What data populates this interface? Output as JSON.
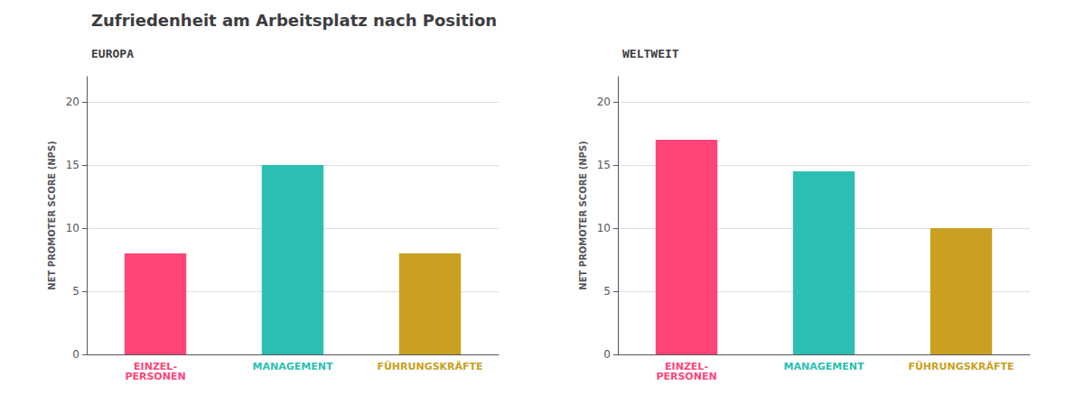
{
  "chart_data": [
    {
      "type": "bar",
      "title": "Zufriedenheit am Arbeitsplatz nach Position",
      "subtitle": "EUROPA",
      "categories": [
        "EINZEL-\nPERSONEN",
        "MANAGEMENT",
        "FÜHRUNGSKRÄFTE"
      ],
      "values": [
        8,
        15,
        8
      ],
      "colors": [
        "#ff4477",
        "#2bbfb3",
        "#c9a020"
      ],
      "ylabel": "NET PROMOTER SCORE (NPS)",
      "ylim": [
        0,
        22
      ],
      "yticks": [
        0,
        5,
        10,
        15,
        20
      ],
      "grid": true
    },
    {
      "type": "bar",
      "subtitle": "WELTWEIT",
      "categories": [
        "EINZEL-\nPERSONEN",
        "MANAGEMENT",
        "FÜHRUNGSKRÄFTE"
      ],
      "values": [
        17,
        14.5,
        10
      ],
      "colors": [
        "#ff4477",
        "#2bbfb3",
        "#c9a020"
      ],
      "ylabel": "NET PROMOTER SCORE (NPS)",
      "ylim": [
        0,
        22
      ],
      "yticks": [
        0,
        5,
        10,
        15,
        20
      ],
      "grid": true
    }
  ]
}
